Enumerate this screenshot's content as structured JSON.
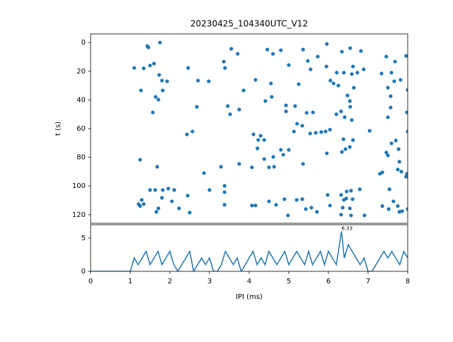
{
  "chart_data": [
    {
      "type": "scatter",
      "title": "20230425_104340UTC_V12",
      "ylabel": "t (s)",
      "color": "#1f77b4",
      "xlim": [
        0,
        8
      ],
      "ylim": [
        -6,
        126
      ],
      "invert_y": true,
      "yticks": [
        0,
        20,
        40,
        60,
        80,
        100,
        120
      ],
      "x": [
        1.1,
        1.34,
        1.43,
        1.46,
        1.5,
        1.6,
        1.75,
        1.73,
        1.8,
        1.93,
        1.82,
        1.27,
        1.64,
        1.71,
        1.57,
        2.46,
        2.71,
        2.98,
        2.68,
        2.43,
        2.57,
        3.36,
        3.39,
        3.55,
        3.71,
        3.46,
        3.52,
        3.75,
        3.86,
        4.46,
        4.6,
        4.16,
        4.55,
        4.41,
        4.57,
        4.8,
        5.0,
        5.25,
        5.36,
        5.48,
        5.55,
        5.73,
        5.96,
        5.95,
        6.13,
        6.05,
        6.25,
        6.21,
        6.34,
        6.39,
        6.55,
        6.59,
        6.62,
        6.64,
        6.73,
        6.82,
        6.89,
        7.46,
        7.59,
        7.66,
        7.68,
        7.82,
        7.96,
        8.0,
        7.5,
        7.57,
        7.34,
        4.93,
        5.16,
        4.93,
        5.45,
        5.61,
        5.21,
        5.13,
        5.34,
        5.54,
        5.68,
        5.82,
        5.93,
        5.96,
        6.04,
        6.2,
        6.32,
        6.41,
        6.38,
        6.43,
        6.34,
        6.54,
        6.54,
        6.55,
        6.48,
        6.59,
        6.62,
        7.04,
        7.57,
        7.5,
        7.98,
        8.0,
        7.59,
        7.7,
        7.77,
        7.46,
        7.5,
        7.79,
        7.75,
        7.84,
        7.36,
        7.3,
        7.98,
        7.96,
        7.54,
        4.11,
        4.29,
        4.23,
        4.38,
        4.21,
        4.38,
        4.61,
        4.5,
        4.63,
        4.8,
        4.86,
        5.0,
        5.36,
        3.75,
        3.29,
        4.07,
        2.86,
        1.68,
        1.25,
        3.38,
        3.38,
        3.0,
        2.45,
        2.11,
        1.96,
        1.8,
        1.82,
        1.63,
        1.5,
        1.29,
        1.21,
        1.25,
        1.34,
        1.66,
        1.71,
        2.05,
        2.23,
        2.5,
        3.38,
        4.07,
        4.16,
        4.5,
        4.68,
        4.89,
        4.98,
        5.2,
        5.34,
        5.43,
        5.57,
        5.71,
        5.98,
        6.04,
        6.32,
        6.39,
        6.46,
        6.57,
        6.45,
        6.61,
        6.79,
        6.91,
        6.36,
        6.32,
        6.54,
        6.57,
        7.36,
        7.52,
        7.64,
        7.75,
        7.86,
        7.79,
        8.0
      ],
      "y": [
        17.7,
        18,
        2.5,
        3.4,
        16,
        14.7,
        0,
        22.6,
        26.5,
        27,
        33.4,
        33.4,
        37.9,
        39.8,
        48.7,
        17.7,
        26.5,
        27,
        44.8,
        64,
        62,
        13.3,
        17.7,
        4.4,
        7.9,
        44.3,
        50,
        46.7,
        33.4,
        4.9,
        7.9,
        26,
        28.5,
        40.8,
        37.9,
        5.4,
        15.7,
        29,
        4.9,
        12.8,
        18.7,
        9.8,
        1,
        16.7,
        28.5,
        26.5,
        30,
        21,
        6.4,
        21,
        3.9,
        22,
        16.7,
        31.5,
        21,
        5.9,
        18.7,
        9.8,
        21,
        27,
        13.3,
        26,
        9.3,
        33,
        31.5,
        37.4,
        21.6,
        43.8,
        44.3,
        48,
        49,
        48.7,
        56.6,
        62,
        58,
        63.4,
        62.9,
        62.4,
        62,
        77.2,
        60.7,
        50,
        48,
        52,
        67.4,
        74.3,
        76.3,
        72.8,
        40.8,
        44.8,
        36.9,
        54,
        68,
        61.5,
        45.3,
        52.1,
        48.7,
        62,
        70.3,
        68.3,
        74.3,
        76.7,
        78.7,
        83.1,
        88.5,
        90,
        90.5,
        91.5,
        91.5,
        93.5,
        102.3,
        64,
        65,
        67.9,
        67.9,
        73.8,
        81.2,
        79.7,
        87,
        86.6,
        74.8,
        78.2,
        74.8,
        84.6,
        84.6,
        86.6,
        87,
        91,
        86.6,
        81.7,
        99.9,
        104.3,
        102.8,
        106.7,
        102.8,
        101.8,
        108.2,
        102.8,
        102.8,
        102.8,
        109.7,
        112.6,
        114,
        112.6,
        118,
        115.6,
        110.7,
        115.6,
        118.5,
        113.1,
        113.6,
        113.6,
        110.7,
        113.1,
        109.2,
        120.5,
        109.7,
        109.2,
        116.1,
        115.1,
        118,
        106.2,
        113.6,
        106.2,
        109.7,
        103.8,
        103.3,
        108.7,
        109.2,
        102.3,
        120.5,
        115.1,
        120,
        115.6,
        120.5,
        114,
        116.1,
        110.7,
        114,
        117.5,
        118,
        116.1
      ]
    },
    {
      "type": "line",
      "xlabel": "IPI (ms)",
      "color": "#1f77b4",
      "xlim": [
        0,
        8
      ],
      "ylim": [
        0,
        7
      ],
      "xticks": [
        0,
        1,
        2,
        3,
        4,
        5,
        6,
        7,
        8
      ],
      "yticks": [
        0,
        5
      ],
      "x": [
        0,
        0.1,
        0.2,
        0.3,
        0.4,
        0.5,
        0.6,
        0.7,
        0.8,
        0.9,
        1.0,
        1.1,
        1.2,
        1.3,
        1.4,
        1.5,
        1.6,
        1.7,
        1.8,
        1.9,
        2.0,
        2.1,
        2.2,
        2.3,
        2.4,
        2.5,
        2.6,
        2.7,
        2.8,
        2.9,
        3.0,
        3.1,
        3.2,
        3.3,
        3.4,
        3.5,
        3.6,
        3.7,
        3.8,
        3.9,
        4.0,
        4.1,
        4.2,
        4.3,
        4.4,
        4.5,
        4.6,
        4.7,
        4.8,
        4.9,
        5.0,
        5.1,
        5.2,
        5.3,
        5.4,
        5.5,
        5.6,
        5.7,
        5.8,
        5.9,
        6.0,
        6.1,
        6.2,
        6.33,
        6.4,
        6.5,
        6.6,
        6.7,
        6.8,
        6.9,
        7.0,
        7.1,
        7.2,
        7.3,
        7.4,
        7.5,
        7.6,
        7.7,
        7.8,
        7.9,
        8.0
      ],
      "values": [
        0,
        0,
        0,
        0,
        0,
        0,
        0,
        0,
        0,
        0,
        0,
        2,
        1,
        2,
        3,
        1,
        2,
        3,
        1,
        2,
        3,
        1,
        0,
        1,
        2,
        3,
        0,
        1,
        2,
        1,
        2,
        0,
        0,
        1,
        3,
        2,
        1,
        2,
        0,
        1,
        2,
        3,
        1,
        2,
        1,
        3,
        2,
        1,
        2,
        3,
        1,
        2,
        3,
        2,
        1,
        3,
        1,
        2,
        3,
        1,
        3,
        2,
        1,
        6,
        2,
        4,
        3,
        2,
        1,
        2,
        0,
        0,
        1,
        2,
        3,
        2,
        3,
        2,
        1,
        3,
        2
      ],
      "annotation": {
        "text": "6.33",
        "x": 6.33,
        "y": 6
      }
    }
  ]
}
